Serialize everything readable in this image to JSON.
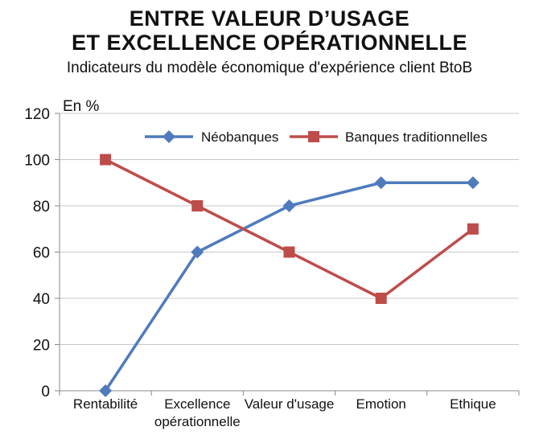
{
  "chart_data": {
    "type": "line",
    "title": [
      "ENTRE VALEUR D’USAGE",
      "ET EXCELLENCE OPÉRATIONNELLE"
    ],
    "subtitle": "Indicateurs du modèle économique d'expérience client BtoB",
    "ylabel": "En %",
    "ylim": [
      0,
      120
    ],
    "yticks": [
      0,
      20,
      40,
      60,
      80,
      100,
      120
    ],
    "categories": [
      [
        "Rentabilité"
      ],
      [
        "Excellence",
        "opérationnelle"
      ],
      [
        "Valeur d'usage"
      ],
      [
        "Emotion"
      ],
      [
        "Ethique"
      ]
    ],
    "series": [
      {
        "name": "Néobanques",
        "values": [
          0,
          60,
          80,
          90,
          90
        ],
        "color": "#4f7bbd",
        "marker": "diamond"
      },
      {
        "name": "Banques traditionnelles",
        "values": [
          100,
          80,
          60,
          40,
          70
        ],
        "color": "#bd4d4a",
        "marker": "square"
      }
    ],
    "grid": true,
    "legend": "top-right"
  }
}
